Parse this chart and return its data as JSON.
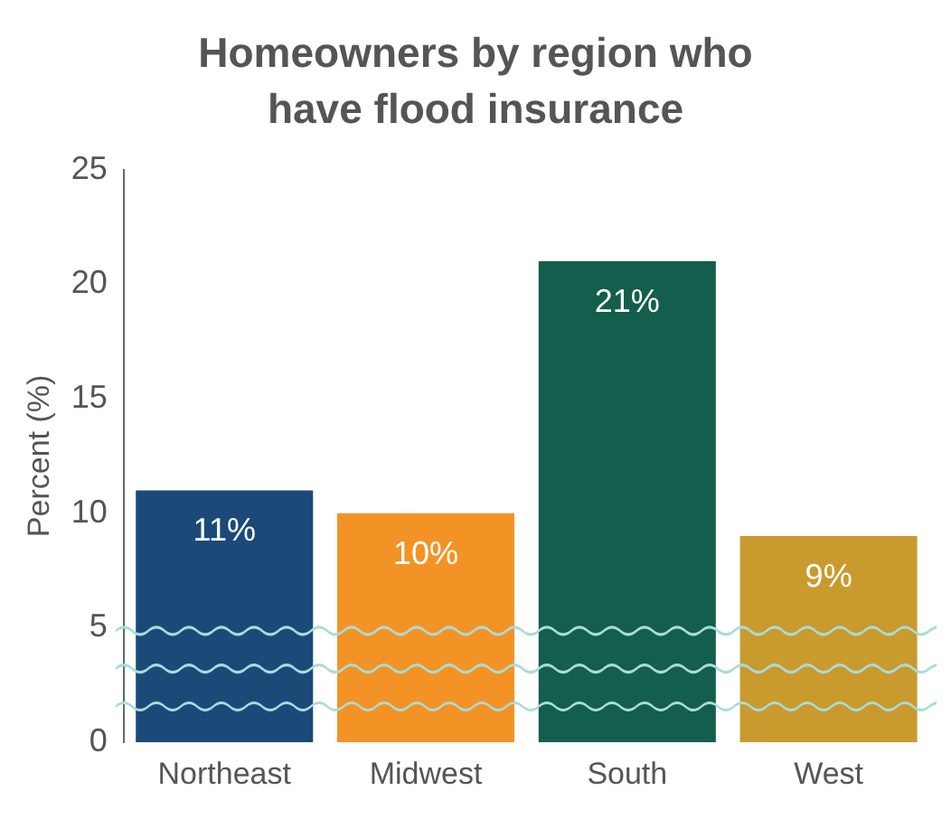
{
  "chart_data": {
    "type": "bar",
    "title": "Homeowners by region who have flood insurance",
    "ylabel": "Percent (%)",
    "categories": [
      "Northeast",
      "Midwest",
      "South",
      "West"
    ],
    "values": [
      11,
      10,
      21,
      9
    ],
    "colors": [
      "#1b4a79",
      "#f39325",
      "#135e4c",
      "#c99a2e"
    ],
    "value_labels": [
      "11%",
      "10%",
      "21%",
      "9%"
    ],
    "ylim": [
      0,
      25
    ],
    "yticks": [
      0,
      5,
      10,
      15,
      20,
      25
    ],
    "grid": false,
    "legend": false
  }
}
